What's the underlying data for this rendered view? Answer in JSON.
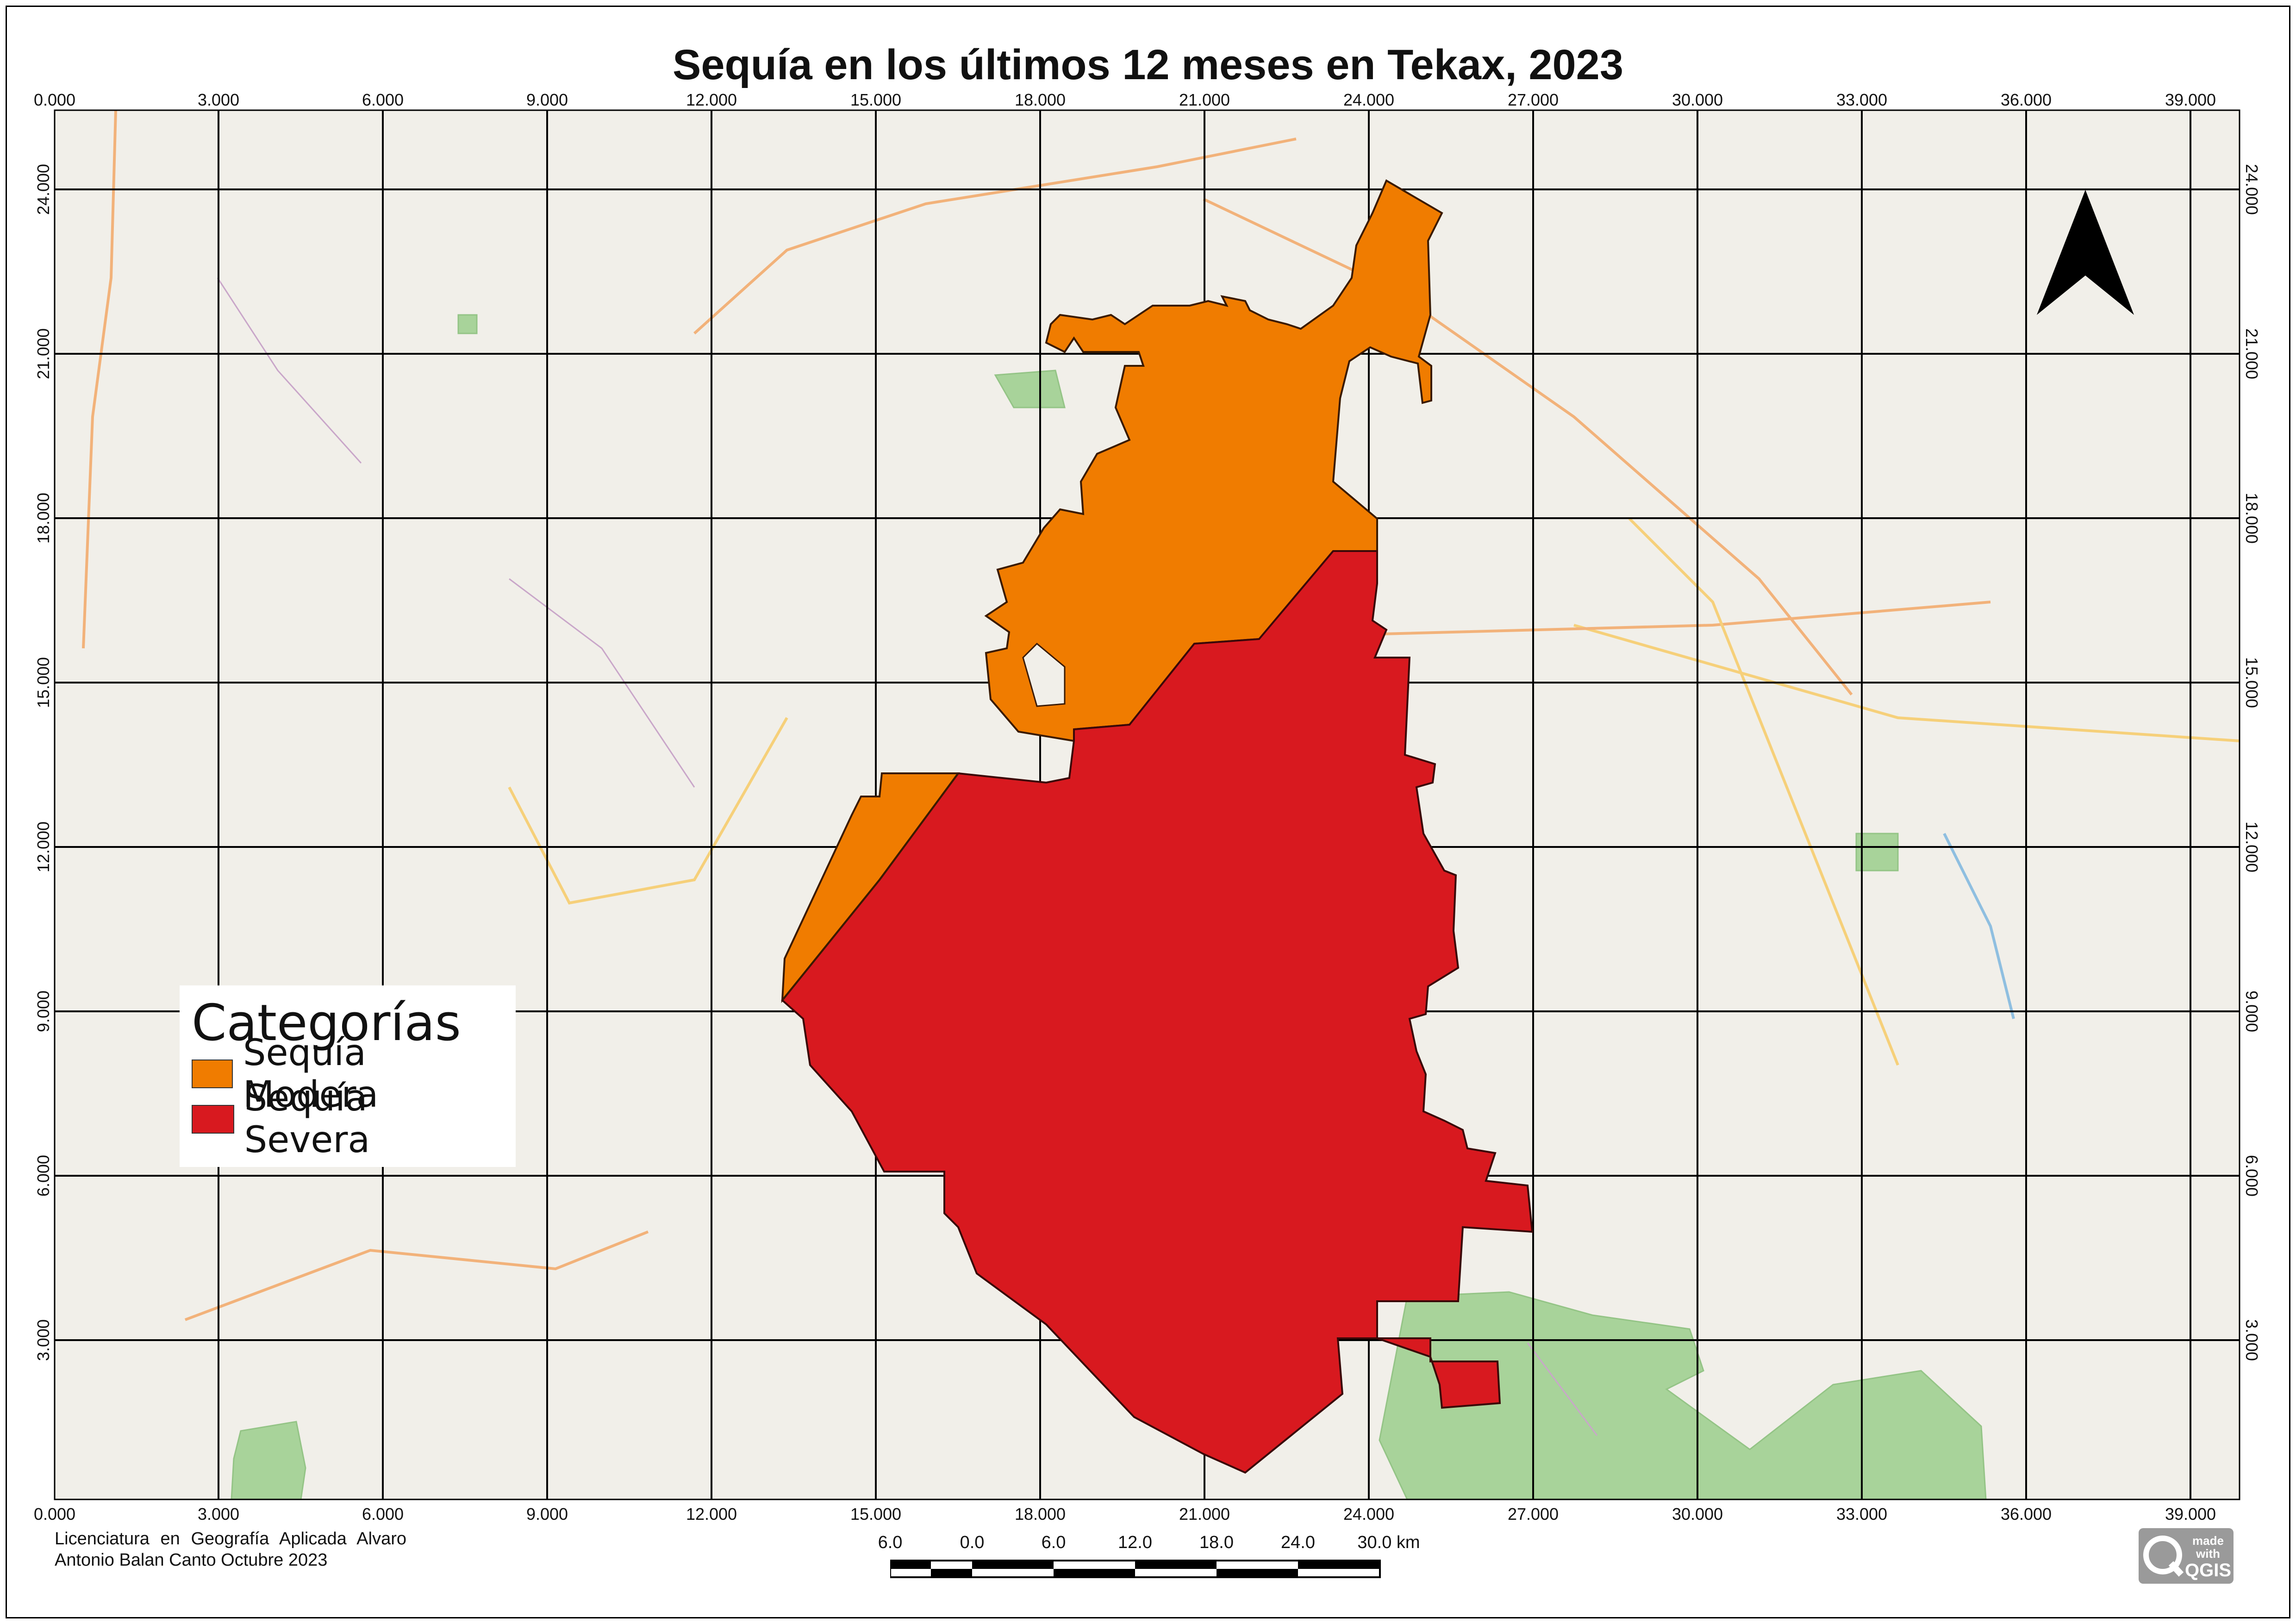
{
  "title": "Sequía en los últimos 12 meses en Tekax, 2023",
  "axes": {
    "x_ticks": [
      "0.000",
      "3.000",
      "6.000",
      "9.000",
      "12.000",
      "15.000",
      "18.000",
      "21.000",
      "24.000",
      "27.000",
      "30.000",
      "33.000",
      "36.000",
      "39.000"
    ],
    "y_ticks": [
      "24.000",
      "21.000",
      "18.000",
      "15.000",
      "12.000",
      "9.000",
      "6.000",
      "3.000"
    ]
  },
  "legend": {
    "title": "Categorías",
    "items": [
      {
        "label": "Sequía Modera",
        "color": "#f07c00"
      },
      {
        "label": "Sequía Severa",
        "color": "#d8191f"
      }
    ]
  },
  "credits": "Licenciatura en Geografía Aplicada Alvaro Antonio Balan Canto Octubre 2023",
  "scale_bar": {
    "labels": [
      "6.0",
      "0.0",
      "6.0",
      "12.0",
      "18.0",
      "24.0",
      "30.0 km"
    ]
  },
  "north_arrow": {
    "icon": "north-arrow-icon"
  },
  "qgis_badge": {
    "text_top": "made",
    "text_mid": "with",
    "text_bottom": "QGIS"
  },
  "colors": {
    "moderate": "#f07c00",
    "severe": "#d8191f",
    "basemap": "#f1efe9",
    "forest": "#a8d39a"
  }
}
